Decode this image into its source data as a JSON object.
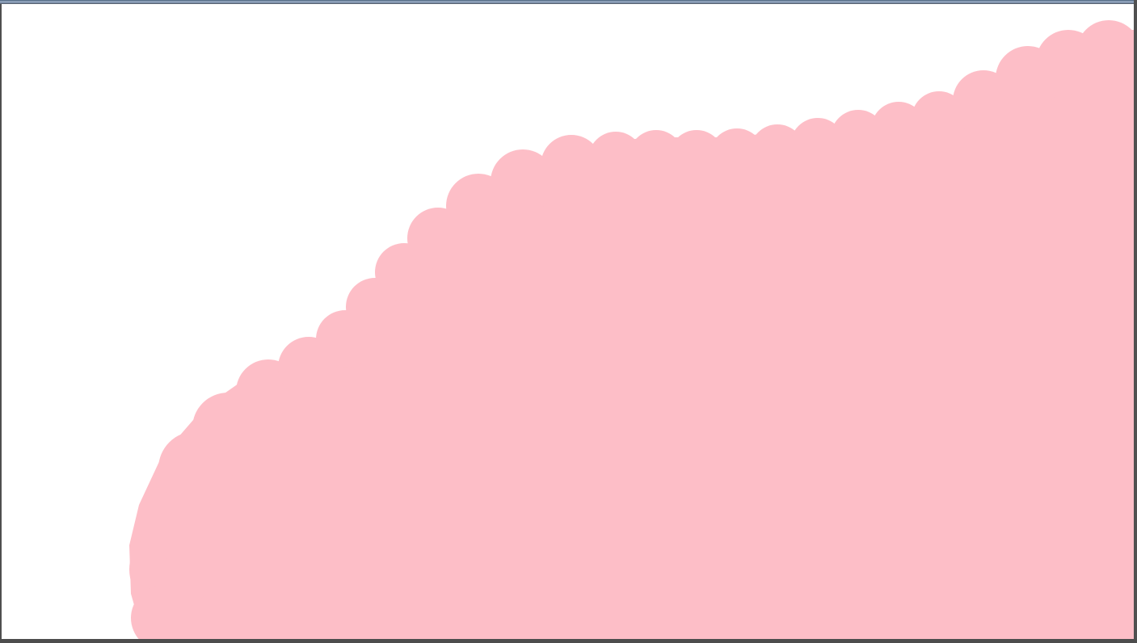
{
  "app": {
    "kind": "paint-canvas"
  },
  "canvas": {
    "background_color": "#ffffff",
    "frame_color": "#4f4f4f",
    "title_strip_color": "#9fb1c9"
  },
  "strokes": [
    {
      "name": "pink-brush-fill",
      "color": "#fdbec7",
      "tool": "round-brush"
    }
  ]
}
